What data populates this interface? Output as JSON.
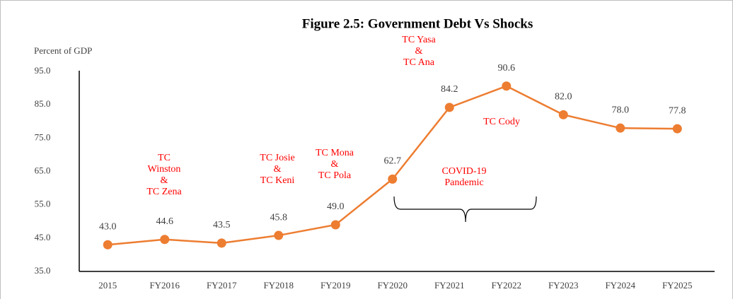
{
  "chart_data": {
    "type": "line",
    "title": "Figure 2.5: Government Debt Vs Shocks",
    "y_label": "Percent of GDP",
    "categories": [
      "2015",
      "FY2016",
      "FY2017",
      "FY2018",
      "FY2019",
      "FY2020",
      "FY2021",
      "FY2022",
      "FY2023",
      "FY2024",
      "FY2025"
    ],
    "values": [
      43.0,
      44.6,
      43.5,
      45.8,
      49.0,
      62.7,
      84.2,
      90.6,
      82.0,
      78.0,
      77.8
    ],
    "value_labels": [
      "43.0",
      "44.6",
      "43.5",
      "45.8",
      "49.0",
      "62.7",
      "84.2",
      "90.6",
      "82.0",
      "78.0",
      "77.8"
    ],
    "color": "#ED7D31",
    "ylim": [
      35,
      95
    ],
    "yticks": [
      {
        "value": 35,
        "label": "35.0"
      },
      {
        "value": 45,
        "label": "45.0"
      },
      {
        "value": 55,
        "label": "55.0"
      },
      {
        "value": 65,
        "label": "65.0"
      },
      {
        "value": 75,
        "label": "75.0"
      },
      {
        "value": 85,
        "label": "85.0"
      },
      {
        "value": 95,
        "label": "95.0"
      }
    ],
    "grid": false,
    "annotations": [
      [
        "TC",
        "Winston",
        "&",
        "TC Zena"
      ],
      [
        "TC Josie",
        "&",
        "TC Keni"
      ],
      [
        "TC Mona",
        "&",
        "TC Pola"
      ],
      [
        "TC Yasa",
        "&",
        "TC Ana"
      ],
      [
        "COVID-19",
        "Pandemic"
      ],
      [
        "TC Cody"
      ]
    ]
  }
}
